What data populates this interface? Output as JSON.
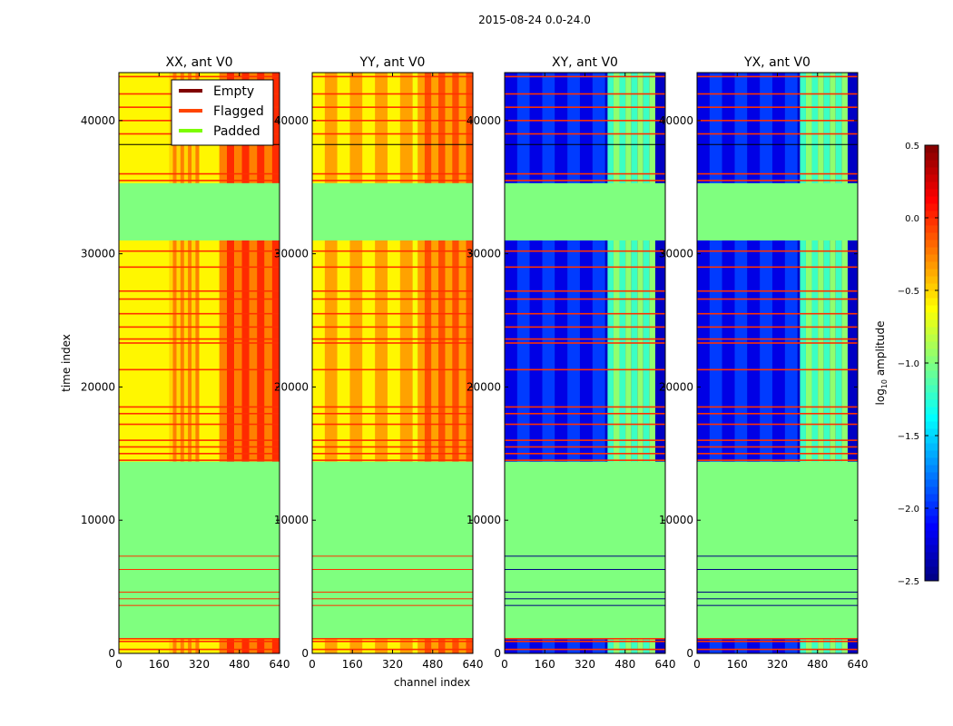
{
  "chart_data": {
    "type": "heatmap",
    "title": "2015-08-24 0.0-24.0",
    "xlabel": "channel index",
    "ylabel": "time index",
    "xlim": [
      0,
      640
    ],
    "ylim": [
      0,
      43600
    ],
    "xticks": [
      0,
      160,
      320,
      480,
      640
    ],
    "yticks": [
      0,
      10000,
      20000,
      30000,
      40000
    ],
    "colorbar": {
      "label": "log10 amplitude",
      "label_main": "log",
      "label_sub": "10",
      "label_rest": " amplitude",
      "range": [
        -2.5,
        0.5
      ],
      "ticks": [
        "0.5",
        "0.0",
        "−0.5",
        "−1.0",
        "−1.5",
        "−2.0",
        "−2.5"
      ],
      "tick_values": [
        0.5,
        0.0,
        -0.5,
        -1.0,
        -1.5,
        -2.0,
        -2.5
      ],
      "colormap": "jet"
    },
    "legend": {
      "placement": "top-right of first panel",
      "entries": [
        {
          "label": "Empty",
          "color": "#800000"
        },
        {
          "label": "Flagged",
          "color": "#ff4500"
        },
        {
          "label": "Padded",
          "color": "#7cfc00"
        }
      ]
    },
    "padded_color": "#7fff7f",
    "flagged_color": "#ff3000",
    "padded_ranges": [
      [
        1100,
        14400
      ],
      [
        31000,
        35300
      ]
    ],
    "padded_lines": [
      3600,
      4100,
      4600,
      6300,
      7300
    ],
    "flagged_times": [
      300,
      900,
      1100,
      14500,
      15000,
      15500,
      16000,
      17200,
      18000,
      18500,
      21300,
      23300,
      23600,
      24500,
      25500,
      26600,
      27200,
      29000,
      30200,
      35500,
      36000,
      39000,
      40000,
      41000,
      42000,
      43300
    ],
    "panels": [
      {
        "title": "XX, ant V0",
        "base": -0.6,
        "bands": [
          {
            "from": 400,
            "to": 640,
            "value": -0.15
          },
          {
            "from": 200,
            "to": 320,
            "value": -0.4
          }
        ]
      },
      {
        "title": "YY, ant V0",
        "base": -0.65,
        "bands": [
          {
            "from": 420,
            "to": 640,
            "value": -0.25
          },
          {
            "from": 0,
            "to": 400,
            "value": -0.5
          }
        ]
      },
      {
        "title": "XY, ant V0",
        "base": -2.3,
        "bands": [
          {
            "from": 410,
            "to": 600,
            "value": -1.1
          },
          {
            "from": 0,
            "to": 400,
            "value": -2.1
          }
        ]
      },
      {
        "title": "YX, ant V0",
        "base": -2.3,
        "bands": [
          {
            "from": 410,
            "to": 600,
            "value": -1.1
          },
          {
            "from": 0,
            "to": 400,
            "value": -2.1
          }
        ]
      }
    ]
  }
}
